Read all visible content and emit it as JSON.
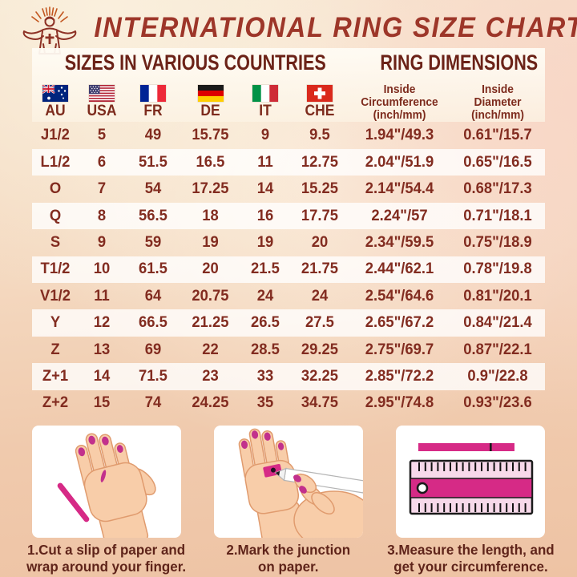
{
  "header": {
    "title": "INTERNATIONAL RING SIZE CHART",
    "logo": "jesus-with-rays-logo",
    "section_left": "SIZES IN VARIOUS COUNTRIES",
    "section_right": "RING DIMENSIONS"
  },
  "chart_data": {
    "type": "table",
    "title": "INTERNATIONAL RING SIZE CHART",
    "country_columns": [
      {
        "code": "AU",
        "flag": "australia-flag"
      },
      {
        "code": "USA",
        "flag": "usa-flag"
      },
      {
        "code": "FR",
        "flag": "france-flag"
      },
      {
        "code": "DE",
        "flag": "germany-flag"
      },
      {
        "code": "IT",
        "flag": "italy-flag"
      },
      {
        "code": "CHE",
        "flag": "switzerland-flag"
      }
    ],
    "dimension_columns": [
      {
        "lines": [
          "Inside",
          "Circumference",
          "(inch/mm)"
        ]
      },
      {
        "lines": [
          "Inside",
          "Diameter",
          "(inch/mm)"
        ]
      }
    ],
    "rows": [
      [
        "J1/2",
        "5",
        "49",
        "15.75",
        "9",
        "9.5",
        "1.94\"/49.3",
        "0.61\"/15.7"
      ],
      [
        "L1/2",
        "6",
        "51.5",
        "16.5",
        "11",
        "12.75",
        "2.04\"/51.9",
        "0.65\"/16.5"
      ],
      [
        "O",
        "7",
        "54",
        "17.25",
        "14",
        "15.25",
        "2.14\"/54.4",
        "0.68\"/17.3"
      ],
      [
        "Q",
        "8",
        "56.5",
        "18",
        "16",
        "17.75",
        "2.24\"/57",
        "0.71\"/18.1"
      ],
      [
        "S",
        "9",
        "59",
        "19",
        "19",
        "20",
        "2.34\"/59.5",
        "0.75\"/18.9"
      ],
      [
        "T1/2",
        "10",
        "61.5",
        "20",
        "21.5",
        "21.75",
        "2.44\"/62.1",
        "0.78\"/19.8"
      ],
      [
        "V1/2",
        "11",
        "64",
        "20.75",
        "24",
        "24",
        "2.54\"/64.6",
        "0.81\"/20.1"
      ],
      [
        "Y",
        "12",
        "66.5",
        "21.25",
        "26.5",
        "27.5",
        "2.65\"/67.2",
        "0.84\"/21.4"
      ],
      [
        "Z",
        "13",
        "69",
        "22",
        "28.5",
        "29.25",
        "2.75\"/69.7",
        "0.87\"/22.1"
      ],
      [
        "Z+1",
        "14",
        "71.5",
        "23",
        "33",
        "32.25",
        "2.85\"/72.2",
        "0.9\"/22.8"
      ],
      [
        "Z+2",
        "15",
        "74",
        "24.25",
        "35",
        "34.75",
        "2.95\"/74.8",
        "0.93\"/23.6"
      ]
    ]
  },
  "steps": [
    {
      "illustration": "hand-with-paper-strip",
      "caption": [
        "1.Cut a slip of paper and",
        "wrap around your finger."
      ]
    },
    {
      "illustration": "hand-marking-with-pen",
      "caption": [
        "2.Mark the junction",
        "on paper."
      ]
    },
    {
      "illustration": "ruler-measuring-strip",
      "caption": [
        "3.Measure the length, and",
        "get your circumference."
      ]
    }
  ],
  "colors": {
    "title_maroon": "#9d3629",
    "section_maroon": "#6b2217",
    "table_text_maroon": "#822c20",
    "caption_maroon": "#5f241a",
    "accent_pink": "#d62a86",
    "band_background": "#fcf5e8",
    "skin_tone": "#f8cda9"
  }
}
